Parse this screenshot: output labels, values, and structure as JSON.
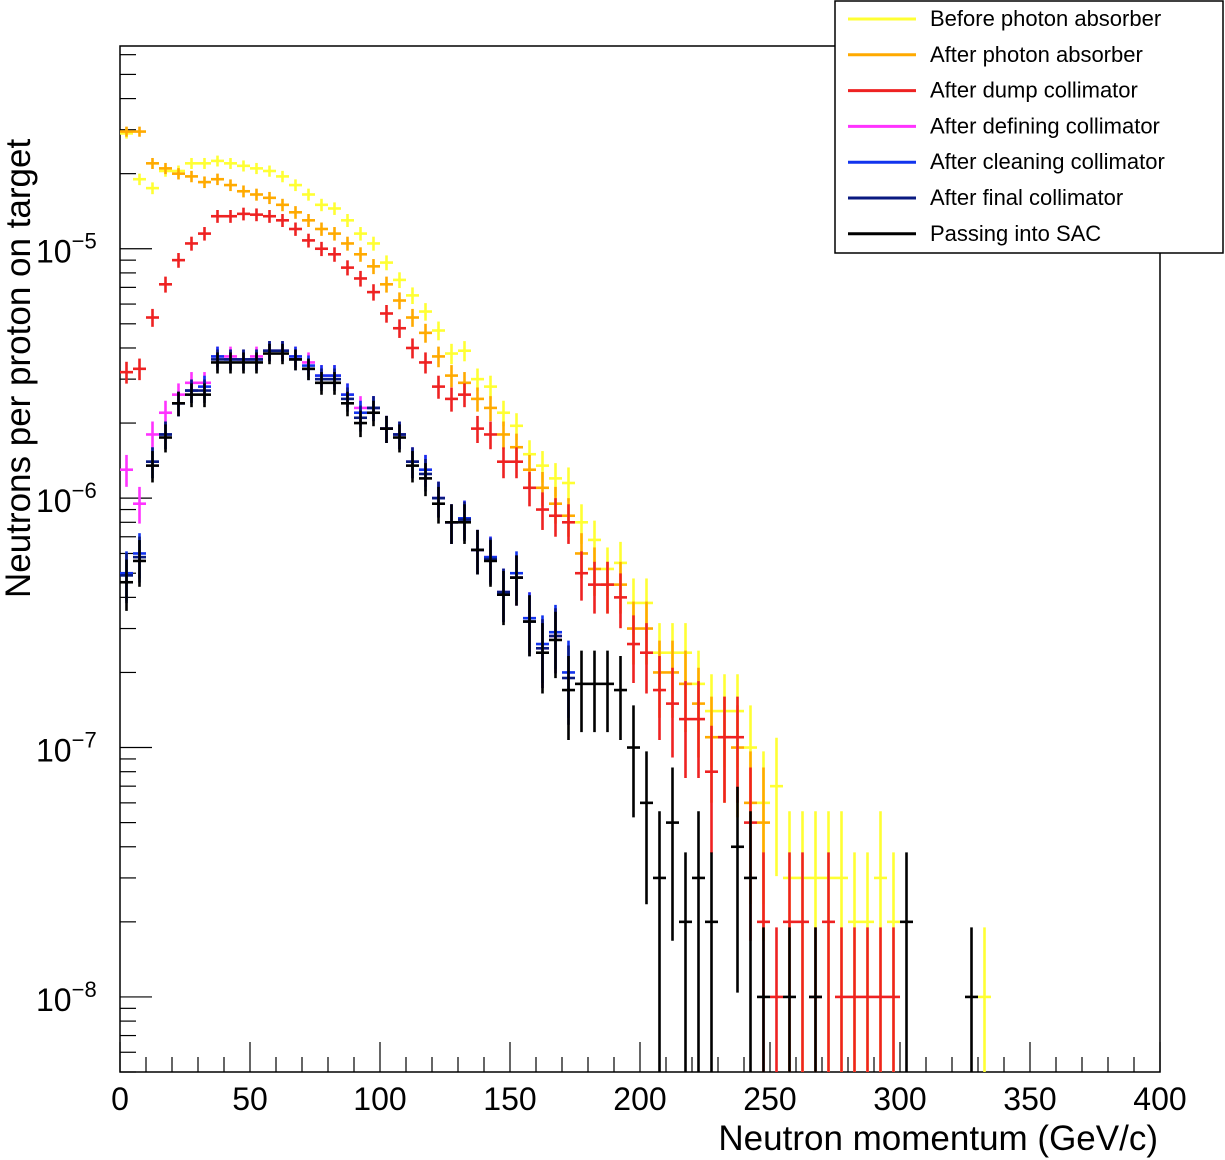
{
  "chart_data": {
    "type": "scatter",
    "title": "",
    "xlabel": "Neutron momentum (GeV/c)",
    "ylabel": "Neutrons per proton on target",
    "xlim": [
      0,
      400
    ],
    "ylim": [
      5e-09,
      6.5e-05
    ],
    "yscale": "log",
    "x_ticks": [
      {
        "value": 0,
        "label": "0"
      },
      {
        "value": 50,
        "label": "50"
      },
      {
        "value": 100,
        "label": "100"
      },
      {
        "value": 150,
        "label": "150"
      },
      {
        "value": 200,
        "label": "200"
      },
      {
        "value": 250,
        "label": "250"
      },
      {
        "value": 300,
        "label": "300"
      },
      {
        "value": 350,
        "label": "350"
      },
      {
        "value": 400,
        "label": "400"
      }
    ],
    "y_ticks": [
      {
        "value": 1e-08,
        "base": "10",
        "exp": "−8"
      },
      {
        "value": 1e-07,
        "base": "10",
        "exp": "−7"
      },
      {
        "value": 1e-06,
        "base": "10",
        "exp": "−6"
      },
      {
        "value": 1e-05,
        "base": "10",
        "exp": "−5"
      }
    ],
    "legend_position": "top-right",
    "series": [
      {
        "name": "Before photon absorber",
        "color": "#ffff33",
        "x": [
          2.5,
          7.5,
          12.5,
          17.5,
          22.5,
          27.5,
          32.5,
          37.5,
          42.5,
          47.5,
          52.5,
          57.5,
          62.5,
          67.5,
          72.5,
          77.5,
          82.5,
          87.5,
          92.5,
          97.5,
          102.5,
          107.5,
          112.5,
          117.5,
          122.5,
          127.5,
          132.5,
          137.5,
          142.5,
          147.5,
          152.5,
          157.5,
          162.5,
          167.5,
          172.5,
          177.5,
          182.5,
          187.5,
          192.5,
          197.5,
          202.5,
          207.5,
          212.5,
          217.5,
          222.5,
          227.5,
          232.5,
          237.5,
          242.5,
          247.5,
          252.5,
          257.5,
          262.5,
          267.5,
          272.5,
          277.5,
          282.5,
          287.5,
          292.5,
          297.5,
          332.5
        ],
        "y": [
          2.9e-05,
          1.9e-05,
          1.75e-05,
          2.05e-05,
          2.05e-05,
          2.2e-05,
          2.2e-05,
          2.25e-05,
          2.2e-05,
          2.15e-05,
          2.1e-05,
          2.05e-05,
          1.95e-05,
          1.8e-05,
          1.65e-05,
          1.5e-05,
          1.45e-05,
          1.3e-05,
          1.15e-05,
          1.05e-05,
          8.8e-06,
          7.5e-06,
          6.5e-06,
          5.6e-06,
          4.7e-06,
          3.8e-06,
          3.9e-06,
          3e-06,
          2.8e-06,
          2.2e-06,
          1.95e-06,
          1.5e-06,
          1.35e-06,
          1.2e-06,
          1.15e-06,
          8e-07,
          6.8e-07,
          5.2e-07,
          5.5e-07,
          3.8e-07,
          3.8e-07,
          2.4e-07,
          2.4e-07,
          2.4e-07,
          1.8e-07,
          1.4e-07,
          1.4e-07,
          1.4e-07,
          1e-07,
          6e-08,
          7e-08,
          3e-08,
          3e-08,
          3e-08,
          3e-08,
          3e-08,
          2e-08,
          2e-08,
          3e-08,
          2e-08,
          1e-08
        ]
      },
      {
        "name": "After photon absorber",
        "color": "#ffaa00",
        "x": [
          2.5,
          7.5,
          12.5,
          17.5,
          22.5,
          27.5,
          32.5,
          37.5,
          42.5,
          47.5,
          52.5,
          57.5,
          62.5,
          67.5,
          72.5,
          77.5,
          82.5,
          87.5,
          92.5,
          97.5,
          102.5,
          107.5,
          112.5,
          117.5,
          122.5,
          127.5,
          132.5,
          137.5,
          142.5,
          147.5,
          152.5,
          157.5,
          162.5,
          167.5,
          172.5,
          177.5,
          182.5,
          187.5,
          192.5,
          197.5,
          202.5,
          207.5,
          212.5,
          217.5,
          222.5,
          227.5,
          232.5,
          237.5,
          242.5,
          247.5
        ],
        "y": [
          2.95e-05,
          2.95e-05,
          2.2e-05,
          2.1e-05,
          2e-05,
          1.95e-05,
          1.85e-05,
          1.9e-05,
          1.8e-05,
          1.7e-05,
          1.65e-05,
          1.6e-05,
          1.5e-05,
          1.4e-05,
          1.3e-05,
          1.2e-05,
          1.15e-05,
          1.05e-05,
          9.5e-06,
          8.5e-06,
          7.2e-06,
          6.2e-06,
          5.3e-06,
          4.6e-06,
          3.7e-06,
          3.1e-06,
          2.9e-06,
          2.5e-06,
          2.3e-06,
          1.8e-06,
          1.6e-06,
          1.3e-06,
          1.1e-06,
          9.5e-07,
          8.5e-07,
          6e-07,
          5.2e-07,
          4.5e-07,
          4.5e-07,
          3e-07,
          3e-07,
          2e-07,
          2e-07,
          1.8e-07,
          1.5e-07,
          1.1e-07,
          1.1e-07,
          1e-07,
          6e-08,
          5e-08
        ]
      },
      {
        "name": "After dump collimator",
        "color": "#ee2222",
        "x": [
          2.5,
          7.5,
          12.5,
          17.5,
          22.5,
          27.5,
          32.5,
          37.5,
          42.5,
          47.5,
          52.5,
          57.5,
          62.5,
          67.5,
          72.5,
          77.5,
          82.5,
          87.5,
          92.5,
          97.5,
          102.5,
          107.5,
          112.5,
          117.5,
          122.5,
          127.5,
          132.5,
          137.5,
          142.5,
          147.5,
          152.5,
          157.5,
          162.5,
          167.5,
          172.5,
          177.5,
          182.5,
          187.5,
          192.5,
          197.5,
          202.5,
          207.5,
          212.5,
          217.5,
          222.5,
          227.5,
          232.5,
          237.5,
          242.5,
          247.5,
          252.5,
          257.5,
          262.5,
          267.5,
          272.5,
          277.5,
          282.5,
          287.5,
          292.5,
          297.5
        ],
        "y": [
          3.2e-06,
          3.3e-06,
          5.3e-06,
          7.2e-06,
          9e-06,
          1.05e-05,
          1.15e-05,
          1.35e-05,
          1.35e-05,
          1.38e-05,
          1.37e-05,
          1.35e-05,
          1.3e-05,
          1.2e-05,
          1.08e-05,
          1e-05,
          9.5e-06,
          8.4e-06,
          7.6e-06,
          6.7e-06,
          5.5e-06,
          4.8e-06,
          4e-06,
          3.5e-06,
          2.8e-06,
          2.5e-06,
          2.6e-06,
          1.9e-06,
          1.8e-06,
          1.4e-06,
          1.4e-06,
          1.1e-06,
          9e-07,
          8.5e-07,
          8e-07,
          5e-07,
          4.5e-07,
          4.5e-07,
          4e-07,
          2.6e-07,
          2.4e-07,
          1.7e-07,
          1.5e-07,
          1.3e-07,
          1.3e-07,
          8e-08,
          1.1e-07,
          1.1e-07,
          5e-08,
          2e-08,
          1e-08,
          2e-08,
          2e-08,
          1e-08,
          2e-08,
          1e-08,
          1e-08,
          1e-08,
          1e-08,
          1e-08
        ]
      },
      {
        "name": "After defining collimator",
        "color": "#ff33ff",
        "x": [
          2.5,
          7.5,
          12.5,
          17.5,
          22.5,
          27.5,
          32.5,
          37.5,
          42.5,
          47.5,
          52.5,
          57.5,
          62.5,
          67.5,
          72.5,
          77.5,
          82.5,
          87.5,
          92.5,
          97.5,
          102.5,
          107.5,
          112.5,
          117.5,
          122.5,
          127.5,
          132.5,
          137.5,
          142.5,
          147.5,
          152.5,
          157.5,
          162.5,
          167.5
        ],
        "y": [
          1.3e-06,
          9.5e-07,
          1.8e-06,
          2.2e-06,
          2.6e-06,
          2.9e-06,
          2.9e-06,
          3.7e-06,
          3.7e-06,
          3.6e-06,
          3.7e-06,
          3.9e-06,
          3.9e-06,
          3.7e-06,
          3.5e-06,
          3.1e-06,
          3.1e-06,
          2.6e-06,
          2.3e-06,
          2.3e-06,
          1.9e-06,
          1.8e-06,
          1.4e-06,
          1.3e-06,
          1e-06,
          8e-07,
          8.3e-07,
          6.2e-07,
          5.8e-07,
          4.2e-07,
          4.8e-07,
          3.3e-07,
          2.5e-07,
          2.8e-07
        ]
      },
      {
        "name": "After cleaning collimator",
        "color": "#1133ee",
        "x": [
          2.5,
          7.5,
          12.5,
          17.5,
          22.5,
          27.5,
          32.5,
          37.5,
          42.5,
          47.5,
          52.5,
          57.5,
          62.5,
          67.5,
          72.5,
          77.5,
          82.5,
          87.5,
          92.5,
          97.5,
          102.5,
          107.5,
          112.5,
          117.5,
          122.5,
          127.5,
          132.5,
          137.5,
          142.5,
          147.5,
          152.5,
          157.5,
          162.5,
          167.5,
          172.5
        ],
        "y": [
          5e-07,
          6e-07,
          1.4e-06,
          1.8e-06,
          2.4e-06,
          2.7e-06,
          2.8e-06,
          3.7e-06,
          3.6e-06,
          3.6e-06,
          3.6e-06,
          3.9e-06,
          3.9e-06,
          3.7e-06,
          3.4e-06,
          3.1e-06,
          3.1e-06,
          2.6e-06,
          2.2e-06,
          2.3e-06,
          1.9e-06,
          1.8e-06,
          1.4e-06,
          1.3e-06,
          1e-06,
          8e-07,
          8.3e-07,
          6.2e-07,
          5.8e-07,
          4.2e-07,
          5e-07,
          3.3e-07,
          2.6e-07,
          2.9e-07,
          2e-07
        ]
      },
      {
        "name": "After final collimator",
        "color": "#0a1a80",
        "x": [
          2.5,
          7.5,
          12.5,
          17.5,
          22.5,
          27.5,
          32.5,
          37.5,
          42.5,
          47.5,
          52.5,
          57.5,
          62.5,
          67.5,
          72.5,
          77.5,
          82.5,
          87.5,
          92.5,
          97.5,
          102.5,
          107.5,
          112.5,
          117.5,
          122.5,
          127.5,
          132.5,
          137.5,
          142.5,
          147.5,
          152.5,
          157.5,
          162.5,
          167.5,
          172.5
        ],
        "y": [
          4.9e-07,
          5.8e-07,
          1.4e-06,
          1.8e-06,
          2.4e-06,
          2.7e-06,
          2.7e-06,
          3.6e-06,
          3.6e-06,
          3.6e-06,
          3.6e-06,
          3.9e-06,
          3.9e-06,
          3.6e-06,
          3.3e-06,
          3e-06,
          3e-06,
          2.5e-06,
          2.1e-06,
          2.3e-06,
          1.9e-06,
          1.8e-06,
          1.4e-06,
          1.25e-06,
          1e-06,
          8e-07,
          8.2e-07,
          6.2e-07,
          5.7e-07,
          4.2e-07,
          4.8e-07,
          3.2e-07,
          2.5e-07,
          2.8e-07,
          1.9e-07
        ]
      },
      {
        "name": "Passing into SAC",
        "color": "#000000",
        "x": [
          2.5,
          7.5,
          12.5,
          17.5,
          22.5,
          27.5,
          32.5,
          37.5,
          42.5,
          47.5,
          52.5,
          57.5,
          62.5,
          67.5,
          72.5,
          77.5,
          82.5,
          87.5,
          92.5,
          97.5,
          102.5,
          107.5,
          112.5,
          117.5,
          122.5,
          127.5,
          132.5,
          137.5,
          142.5,
          147.5,
          152.5,
          157.5,
          162.5,
          167.5,
          172.5,
          177.5,
          182.5,
          187.5,
          192.5,
          197.5,
          202.5,
          207.5,
          212.5,
          217.5,
          222.5,
          227.5,
          237.5,
          242.5,
          247.5,
          257.5,
          267.5,
          302.5,
          327.5
        ],
        "y": [
          4.6e-07,
          5.6e-07,
          1.35e-06,
          1.75e-06,
          2.4e-06,
          2.6e-06,
          2.6e-06,
          3.5e-06,
          3.5e-06,
          3.5e-06,
          3.5e-06,
          3.8e-06,
          3.8e-06,
          3.6e-06,
          3.3e-06,
          2.9e-06,
          2.9e-06,
          2.4e-06,
          2e-06,
          2.2e-06,
          1.9e-06,
          1.75e-06,
          1.35e-06,
          1.2e-06,
          9.5e-07,
          8e-07,
          8e-07,
          6.2e-07,
          5.6e-07,
          4.1e-07,
          4.8e-07,
          3.2e-07,
          2.4e-07,
          2.7e-07,
          1.7e-07,
          1.8e-07,
          1.8e-07,
          1.8e-07,
          1.7e-07,
          1e-07,
          6e-08,
          3e-08,
          5e-08,
          2e-08,
          3e-08,
          2e-08,
          4e-08,
          3e-08,
          1e-08,
          1e-08,
          1e-08,
          2e-08,
          1e-08
        ]
      }
    ]
  }
}
